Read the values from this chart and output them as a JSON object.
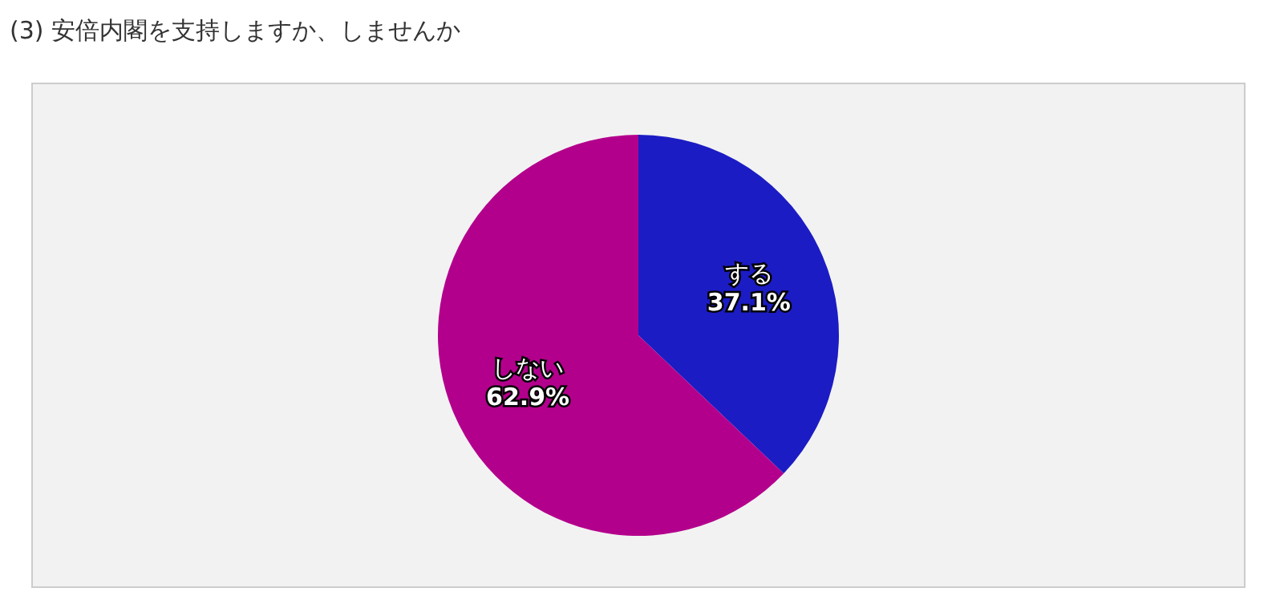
{
  "chart_data": {
    "type": "pie",
    "title": "(3) 安倍内閣を支持しますか、しませんか",
    "categories": [
      "する",
      "しない"
    ],
    "values": [
      37.1,
      62.9
    ],
    "colors": [
      "#1c1cc4",
      "#b3008c"
    ],
    "value_labels": [
      "37.1%",
      "62.9%"
    ]
  }
}
